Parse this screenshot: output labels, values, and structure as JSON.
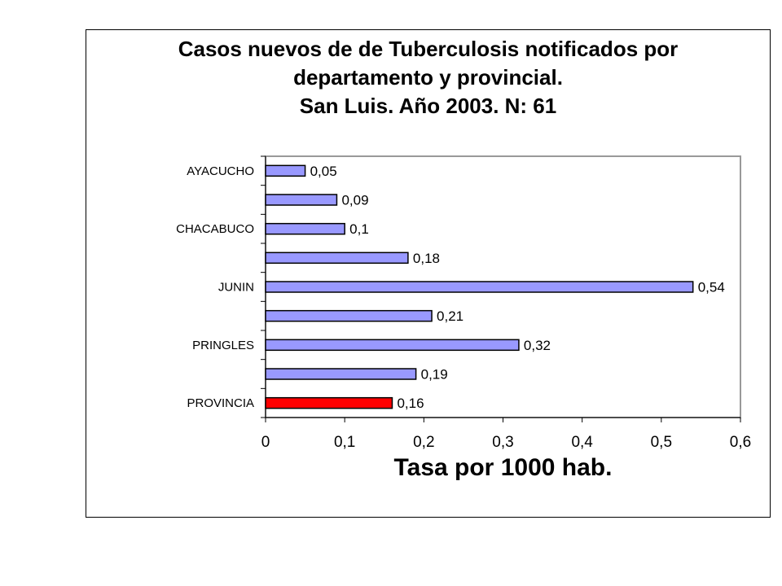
{
  "chart_data": {
    "type": "bar",
    "orientation": "horizontal",
    "title_lines": [
      "Casos nuevos de de Tuberculosis notificados por",
      "departamento y provincial.",
      "San Luis. Año 2003. N: 61"
    ],
    "xlabel": "Tasa por 1000 hab.",
    "ylabel": "",
    "xlim": [
      0,
      0.6
    ],
    "x_ticks": [
      "0",
      "0,1",
      "0,2",
      "0,3",
      "0,4",
      "0,5",
      "0,6"
    ],
    "categories": [
      "AYACUCHO",
      "",
      "CHACABUCO",
      "",
      "JUNIN",
      "",
      "PRINGLES",
      "",
      "PROVINCIA"
    ],
    "values": [
      0.05,
      0.09,
      0.1,
      0.18,
      0.54,
      0.21,
      0.32,
      0.19,
      0.16
    ],
    "data_labels": [
      "0,05",
      "0,09",
      "0,1",
      "0,18",
      "0,54",
      "0,21",
      "0,32",
      "0,19",
      "0,16"
    ],
    "bar_colors": [
      "#9999ff",
      "#9999ff",
      "#9999ff",
      "#9999ff",
      "#9999ff",
      "#9999ff",
      "#9999ff",
      "#9999ff",
      "#ff0000"
    ],
    "grid": false,
    "legend": "none"
  }
}
